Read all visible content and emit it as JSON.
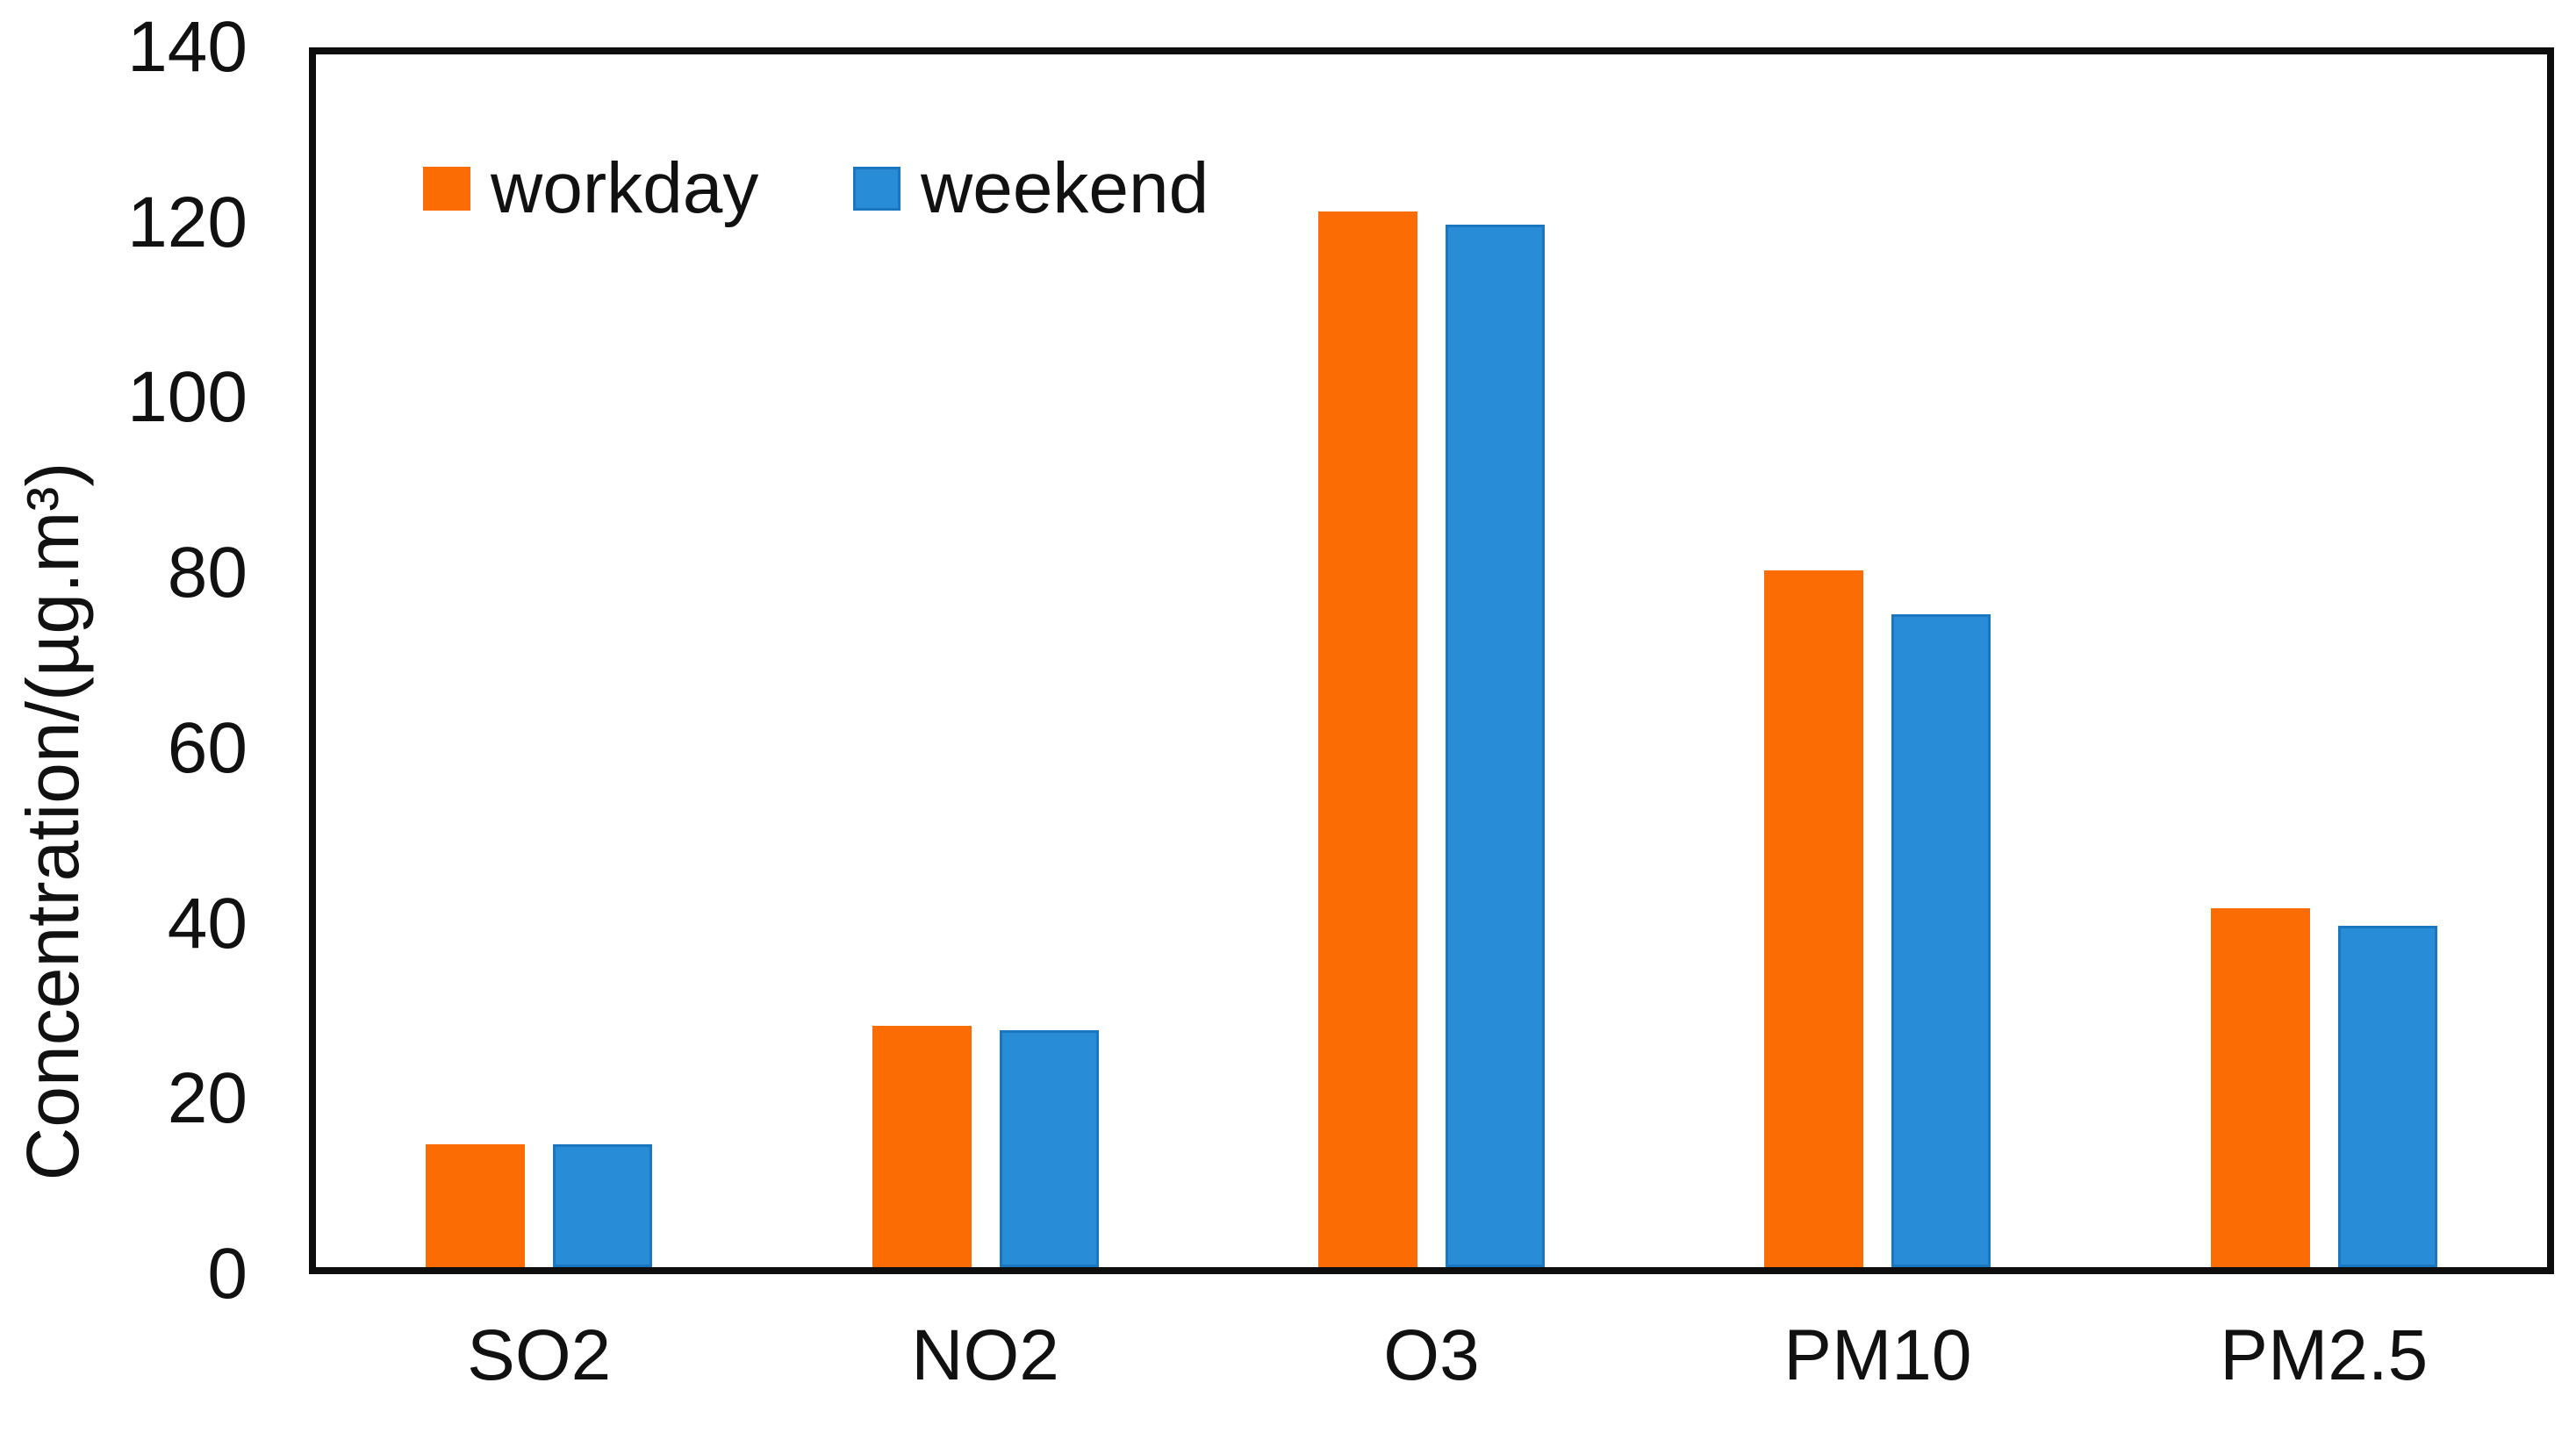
{
  "chart_data": {
    "type": "bar",
    "title": "",
    "categories": [
      "SO2",
      "NO2",
      "O3",
      "PM10",
      "PM2.5"
    ],
    "series": [
      {
        "name": "workday",
        "color": "#FB6C04",
        "edge_color": "#FB6C04",
        "values": [
          14,
          27.5,
          120.5,
          79.5,
          41
        ]
      },
      {
        "name": "weekend",
        "color": "#288CD7",
        "edge_color": "#1B76C0",
        "values": [
          14,
          27,
          119,
          74.5,
          39
        ]
      }
    ],
    "xlabel": "",
    "ylabel": "Concentration/(µg.m³)",
    "ylim": [
      0,
      140
    ],
    "yticks": [
      0,
      20,
      40,
      60,
      80,
      100,
      120,
      140
    ],
    "grid": false,
    "legend_position": "inside-top-left",
    "axis_color": "#0d0d0d",
    "plot_background": "#ffffff"
  }
}
